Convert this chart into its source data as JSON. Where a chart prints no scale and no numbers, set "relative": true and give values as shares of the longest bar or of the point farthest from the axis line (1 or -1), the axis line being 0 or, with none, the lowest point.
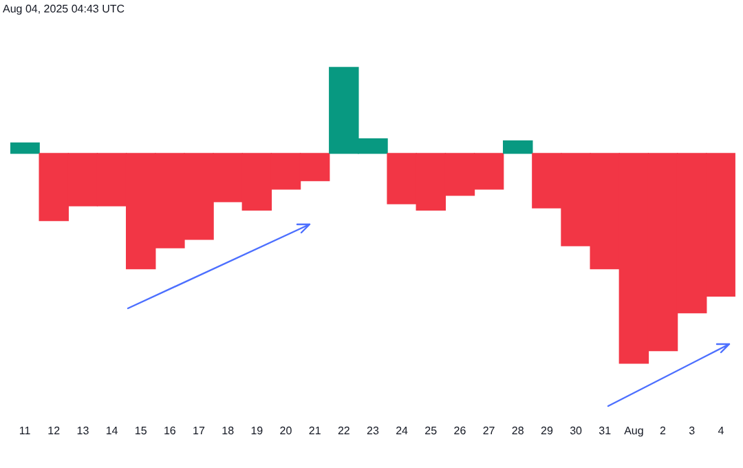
{
  "chart_data": {
    "type": "bar",
    "relative": true,
    "legend": false,
    "grid": false,
    "tick_labels": "x",
    "annotations": [
      "Aug 04, 2025 04:43 UTC"
    ],
    "categories": [
      "11",
      "12",
      "13",
      "14",
      "15",
      "16",
      "17",
      "18",
      "19",
      "20",
      "21",
      "22",
      "23",
      "24",
      "25",
      "26",
      "27",
      "28",
      "29",
      "30",
      "31",
      "Aug",
      "2",
      "3",
      "4"
    ],
    "values": [
      0.05,
      -0.32,
      -0.25,
      -0.25,
      -0.55,
      -0.45,
      -0.41,
      -0.23,
      -0.27,
      -0.17,
      -0.13,
      0.41,
      0.07,
      -0.24,
      -0.27,
      -0.2,
      -0.17,
      0.06,
      -0.26,
      -0.44,
      -0.55,
      -1,
      -0.94,
      -0.76,
      -0.68
    ],
    "colors": [
      "#089981",
      "#f23645",
      "#f23645",
      "#f23645",
      "#f23645",
      "#f23645",
      "#f23645",
      "#f23645",
      "#f23645",
      "#f23645",
      "#f23645",
      "#089981",
      "#089981",
      "#f23645",
      "#f23645",
      "#f23645",
      "#f23645",
      "#089981",
      "#f23645",
      "#f23645",
      "#f23645",
      "#f23645",
      "#f23645",
      "#f23645",
      "#f23645"
    ]
  }
}
